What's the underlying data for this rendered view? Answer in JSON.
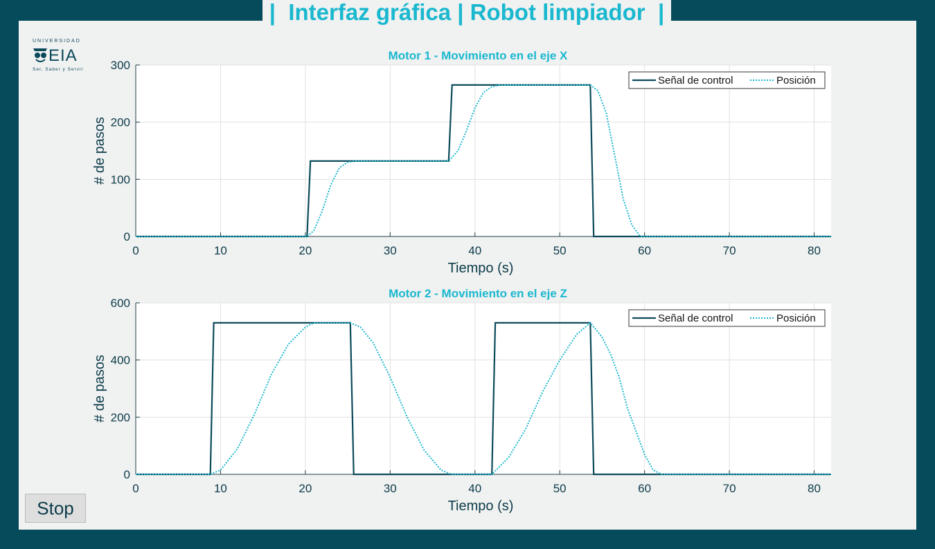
{
  "app": {
    "title": "|  Interfaz gráfica | Robot limpiador  |",
    "stop_label": "Stop",
    "logo": {
      "top_text": "UNIVERSIDAD",
      "brand": "EIA",
      "tagline": "Ser, Saber y Servir"
    }
  },
  "colors": {
    "background": "#064b5b",
    "panel": "#f0f1f1",
    "accent": "#1ab8cf",
    "control_signal": "#0b4a5a",
    "position": "#19b6cd"
  },
  "chart_data": [
    {
      "type": "line",
      "title": "Motor 1 - Movimiento en el eje X",
      "xlabel": "Tiempo (s)",
      "ylabel": "# de pasos",
      "xlim": [
        0,
        82
      ],
      "ylim": [
        0,
        300
      ],
      "xticks": [
        0,
        10,
        20,
        30,
        40,
        50,
        60,
        70,
        80
      ],
      "yticks": [
        0,
        100,
        200,
        300
      ],
      "grid": true,
      "legend_position": "top-right",
      "series": [
        {
          "name": "Señal de control",
          "style": "solid",
          "color": "#0b4a5a",
          "x": [
            0,
            20.2,
            20.6,
            36.9,
            37.3,
            53.6,
            54.0,
            82
          ],
          "y": [
            0,
            0,
            132,
            132,
            265,
            265,
            0,
            0
          ]
        },
        {
          "name": "Posición",
          "style": "dotted",
          "color": "#19b6cd",
          "x": [
            0,
            20.2,
            21,
            22,
            23,
            24,
            25,
            26,
            36.9,
            38,
            39,
            40,
            41,
            42,
            43,
            53.6,
            54.5,
            55.5,
            56.5,
            57.5,
            58.5,
            59.5,
            82
          ],
          "y": [
            0,
            0,
            10,
            45,
            90,
            120,
            130,
            132,
            132,
            150,
            185,
            225,
            252,
            262,
            265,
            265,
            255,
            215,
            140,
            65,
            20,
            0,
            0
          ]
        }
      ]
    },
    {
      "type": "line",
      "title": "Motor 2 - Movimiento en el eje Z",
      "xlabel": "Tiempo (s)",
      "ylabel": "# de pasos",
      "xlim": [
        0,
        82
      ],
      "ylim": [
        0,
        600
      ],
      "xticks": [
        0,
        10,
        20,
        30,
        40,
        50,
        60,
        70,
        80
      ],
      "yticks": [
        0,
        200,
        400,
        600
      ],
      "grid": true,
      "legend_position": "top-right",
      "series": [
        {
          "name": "Señal de control",
          "style": "solid",
          "color": "#0b4a5a",
          "x": [
            0,
            8.8,
            9.2,
            25.3,
            25.7,
            42.0,
            42.4,
            53.6,
            54.0,
            82
          ],
          "y": [
            0,
            0,
            530,
            530,
            0,
            0,
            530,
            530,
            0,
            0
          ]
        },
        {
          "name": "Posición",
          "style": "dotted",
          "color": "#19b6cd",
          "x": [
            0,
            8.8,
            10,
            12,
            14,
            16,
            18,
            20,
            21,
            25.3,
            26.5,
            28,
            30,
            32,
            34,
            36,
            37.2,
            42.0,
            44,
            46,
            48,
            50,
            52,
            53.6,
            55,
            56,
            57,
            58,
            59,
            60,
            61,
            62,
            82
          ],
          "y": [
            0,
            0,
            15,
            90,
            210,
            350,
            455,
            515,
            530,
            530,
            515,
            460,
            340,
            200,
            85,
            15,
            0,
            0,
            60,
            160,
            290,
            400,
            490,
            530,
            480,
            420,
            340,
            230,
            150,
            70,
            15,
            0,
            0
          ]
        }
      ]
    }
  ]
}
